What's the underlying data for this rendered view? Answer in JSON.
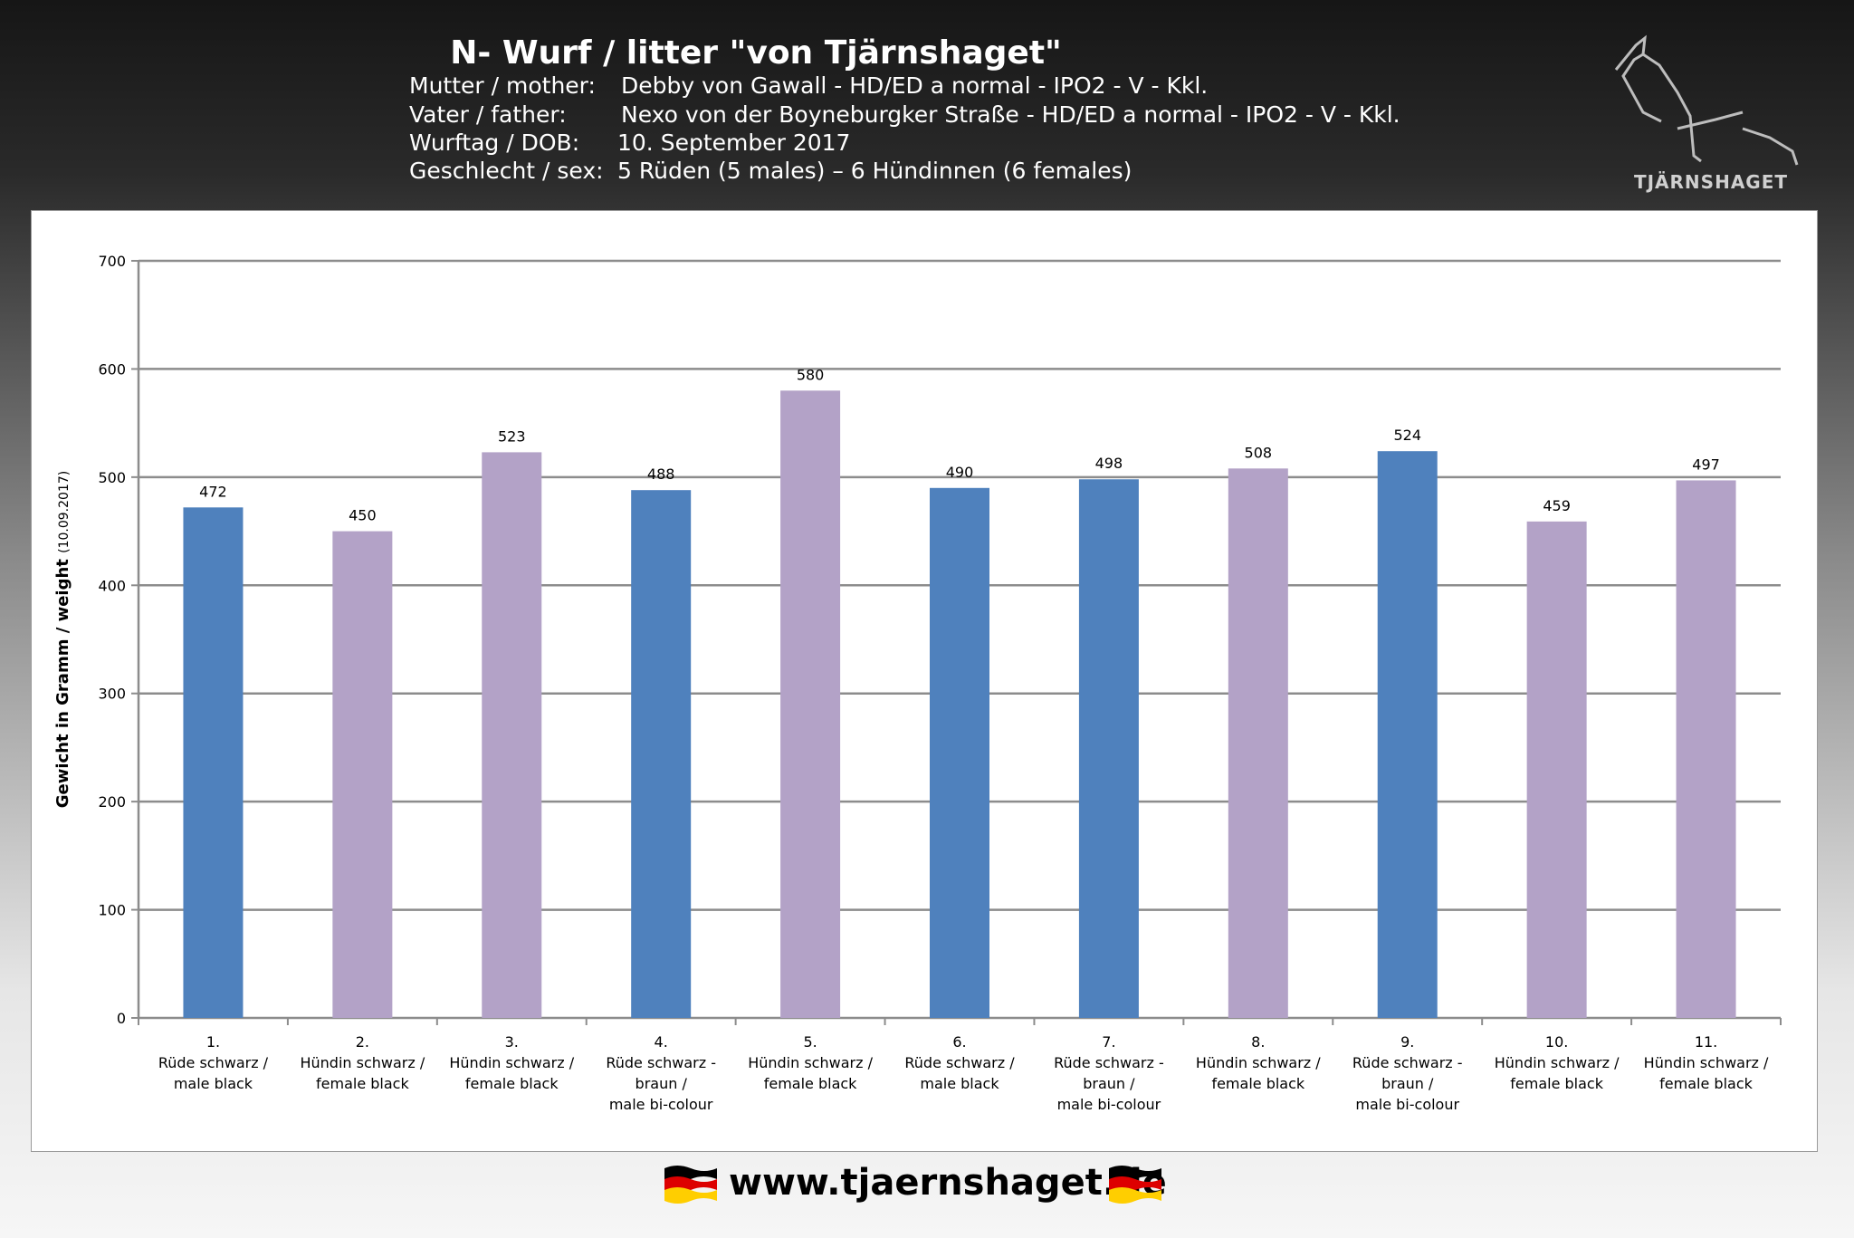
{
  "header": {
    "title": "N- Wurf / litter \"von Tjärnshaget\"",
    "rows": [
      {
        "key": "Mutter / mother:",
        "value": "Debby von Gawall - HD/ED a normal - IPO2 - V - Kkl."
      },
      {
        "key": "Vater / father:",
        "value": "Nexo von der Boyneburgker Straße - HD/ED a normal - IPO2 - V - Kkl."
      },
      {
        "key": "Wurftag / DOB:",
        "value": "10. September 2017"
      },
      {
        "key": "Geschlecht / sex:",
        "value": "5 Rüden (5 males) – 6 Hündinnen (6 females)"
      }
    ]
  },
  "logo": {
    "text": "TJÄRNSHAGET",
    "icon": "dog-head-icon"
  },
  "footer": {
    "url": "www.tjaernshaget.de",
    "flag_icon": "german-flag-icon"
  },
  "colors": {
    "male": "#4F81BD",
    "female": "#B3A2C7"
  },
  "chart_data": {
    "type": "bar",
    "ylabel": "Gewicht in Gramm / weight",
    "ylabel_suffix": "(10.09.2017)",
    "ylim": [
      0,
      700
    ],
    "yticks": [
      0,
      100,
      200,
      300,
      400,
      500,
      600,
      700
    ],
    "grid": true,
    "categories": [
      [
        "1.",
        "Rüde schwarz /",
        "male black"
      ],
      [
        "2.",
        "Hündin schwarz /",
        "female black"
      ],
      [
        "3.",
        "Hündin schwarz /",
        "female black"
      ],
      [
        "4.",
        "Rüde schwarz -",
        "braun /",
        "male bi-colour"
      ],
      [
        "5.",
        "Hündin schwarz /",
        "female black"
      ],
      [
        "6.",
        "Rüde schwarz /",
        "male black"
      ],
      [
        "7.",
        "Rüde schwarz -",
        "braun /",
        "male bi-colour"
      ],
      [
        "8.",
        "Hündin schwarz /",
        "female black"
      ],
      [
        "9.",
        "Rüde schwarz -",
        "braun /",
        "male bi-colour"
      ],
      [
        "10.",
        "Hündin schwarz /",
        "female black"
      ],
      [
        "11.",
        "Hündin schwarz /",
        "female black"
      ]
    ],
    "values": [
      472,
      450,
      523,
      488,
      580,
      490,
      498,
      508,
      524,
      459,
      497
    ],
    "sex": [
      "male",
      "female",
      "female",
      "male",
      "female",
      "male",
      "male",
      "female",
      "male",
      "female",
      "female"
    ]
  }
}
